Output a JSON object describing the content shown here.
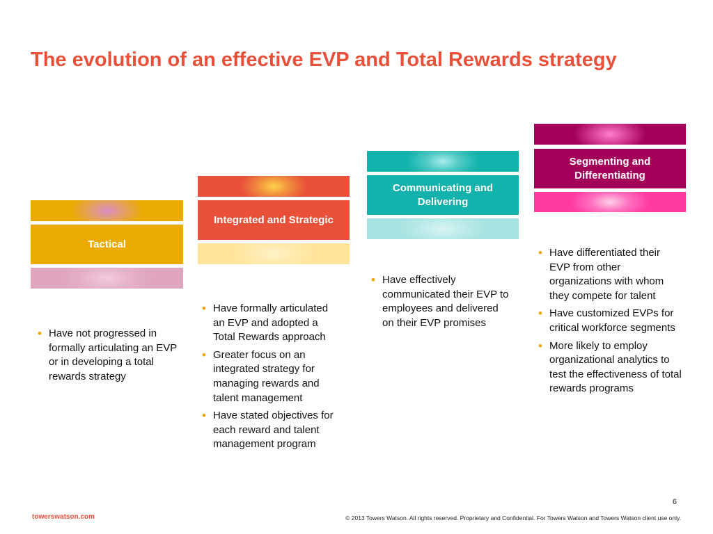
{
  "title": "The evolution of an effective EVP and Total Rewards strategy",
  "colors": {
    "title": "#E8503A",
    "tactical": "#EAAA00",
    "integrated": "#E8503A",
    "communicating": "#14B2AC",
    "segmenting": "#A3005A",
    "bullet": "#F0A400"
  },
  "stages": [
    {
      "label": "Tactical",
      "bullets": [
        "Have not progressed in formally articulating an EVP or in developing a total rewards strategy"
      ]
    },
    {
      "label": "Integrated and Strategic",
      "bullets": [
        "Have formally articulated an EVP and adopted a Total Rewards approach",
        "Greater focus on an integrated strategy for managing rewards and talent management",
        "Have stated objectives for each reward and talent management program"
      ]
    },
    {
      "label": "Communicating and Delivering",
      "bullets": [
        "Have effectively communicated their EVP to employees and delivered on their EVP promises"
      ]
    },
    {
      "label": "Segmenting and Differentiating",
      "bullets": [
        "Have differentiated their EVP from other organizations with whom they compete for talent",
        "Have customized EVPs for critical workforce segments",
        "More likely to employ organizational analytics to test the effectiveness of total rewards programs"
      ]
    }
  ],
  "footer": {
    "page_number": "6",
    "brand": "towerswatson.com",
    "copyright": "© 2013 Towers Watson. All rights reserved. Proprietary and Confidential. For Towers Watson and Towers Watson client use only."
  }
}
